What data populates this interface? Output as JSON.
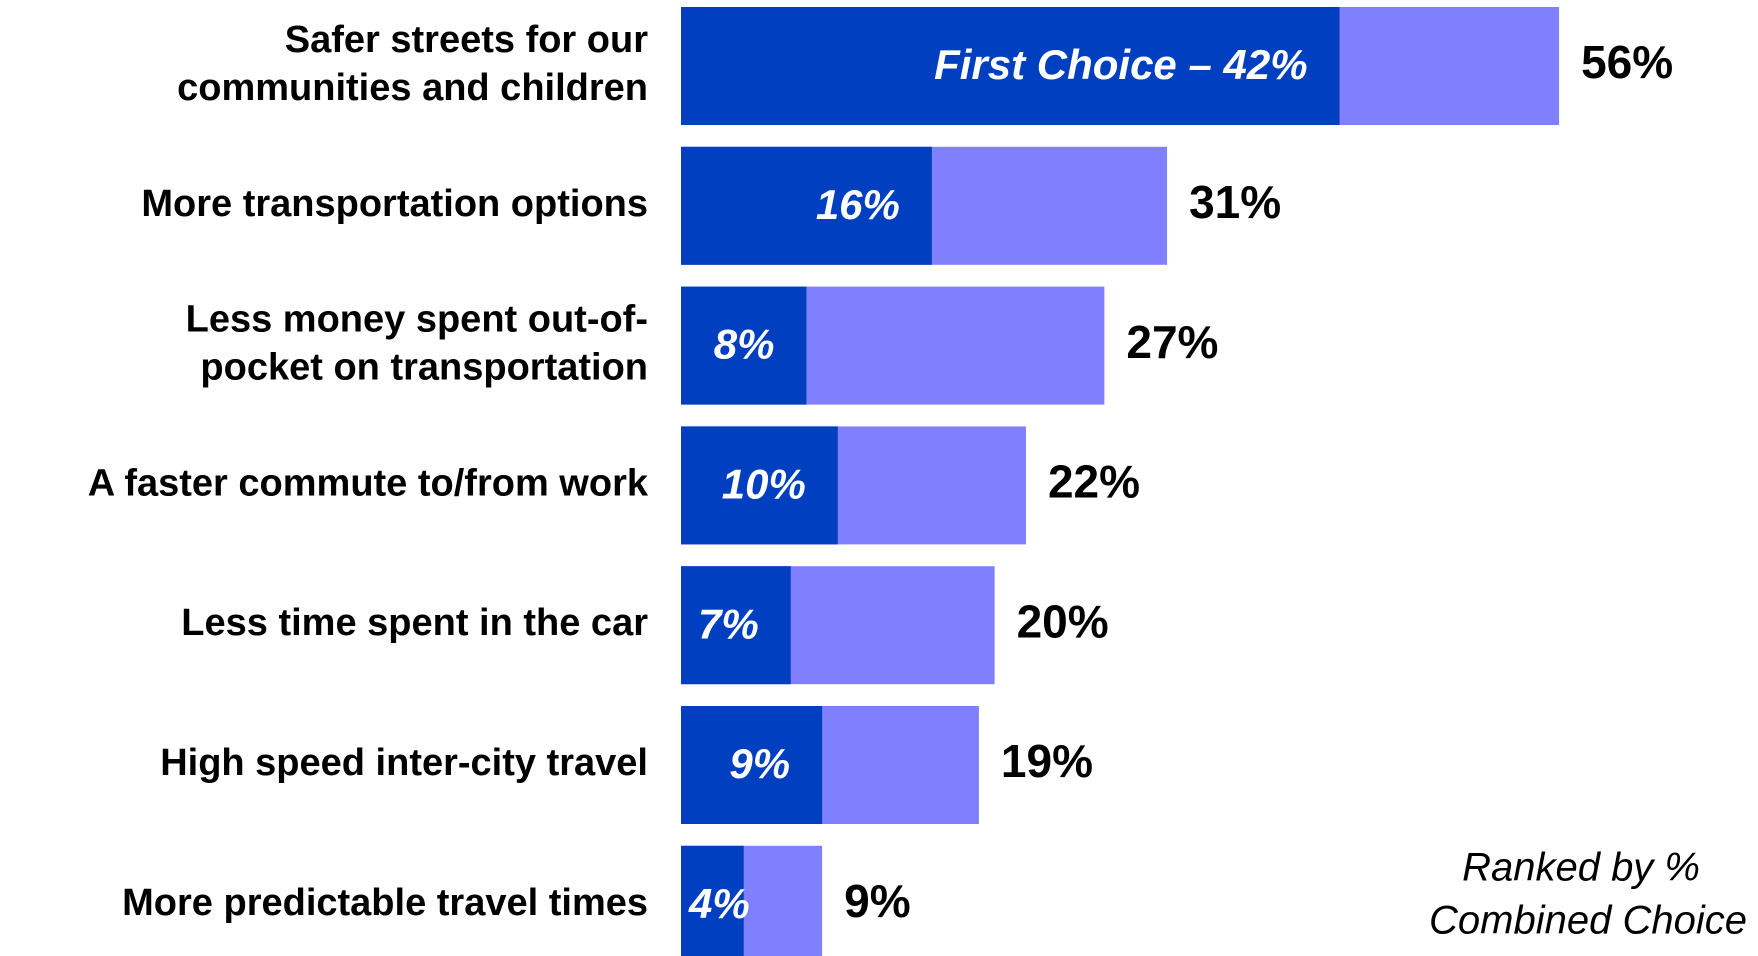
{
  "chart_data": {
    "type": "bar",
    "categories": [
      [
        "Safer streets for our",
        "communities and children"
      ],
      [
        "More transportation options"
      ],
      [
        "Less money spent out-of-",
        "pocket on transportation"
      ],
      [
        "A faster commute to/from work"
      ],
      [
        "Less time spent in the car"
      ],
      [
        "High speed inter-city travel"
      ],
      [
        "More predictable travel times"
      ]
    ],
    "series": [
      {
        "color": "#8080ff",
        "values": [
          56,
          31,
          27,
          22,
          20,
          19,
          9
        ],
        "value_labels": [
          "56%",
          "31%",
          "27%",
          "22%",
          "20%",
          "19%",
          "9%"
        ]
      },
      {
        "color": "#0040c0",
        "values": [
          42,
          16,
          8,
          10,
          7,
          9,
          4
        ],
        "value_labels": [
          "First Choice – 42%",
          "16%",
          "8%",
          "10%",
          "7%",
          "9%",
          "4%"
        ]
      }
    ],
    "annotation": [
      "Ranked by %",
      "Combined Choice"
    ]
  }
}
